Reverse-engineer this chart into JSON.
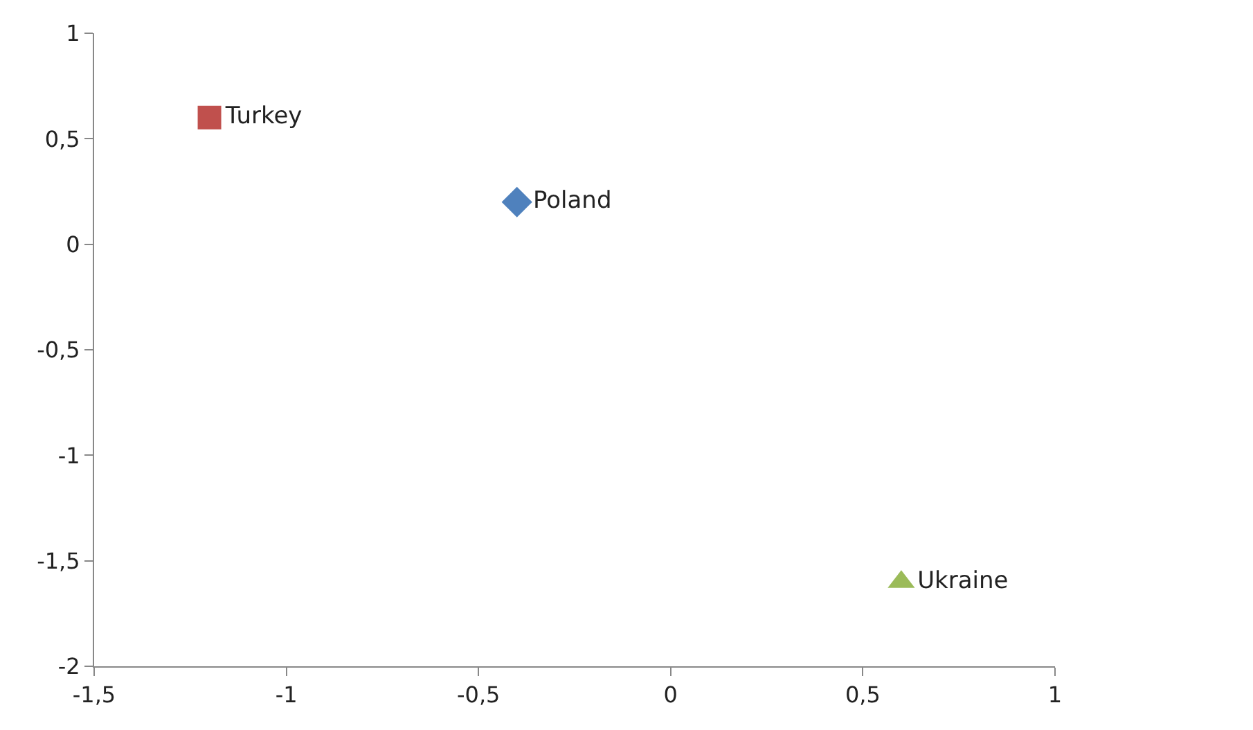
{
  "chart_data": {
    "type": "scatter",
    "series": [
      {
        "name": "Poland",
        "color": "#4f81bd",
        "marker": "diamond",
        "x": [
          -0.4
        ],
        "values": [
          0.2
        ]
      },
      {
        "name": "Turkey",
        "color": "#c0504d",
        "marker": "square",
        "x": [
          -1.2
        ],
        "values": [
          0.6
        ]
      },
      {
        "name": "Ukraine",
        "color": "#9bbb59",
        "marker": "triangle",
        "x": [
          0.6
        ],
        "values": [
          -1.6
        ]
      }
    ],
    "xlim": [
      -1.5,
      1
    ],
    "xticks": [
      {
        "value": -1.5,
        "label": "-1,5"
      },
      -1,
      {
        "value": -0.5,
        "label": "-0,5"
      },
      0,
      {
        "value": 0.5,
        "label": "0,5"
      },
      1
    ],
    "ylim": [
      -2,
      1
    ],
    "yticks": [
      -2,
      {
        "value": -1.5,
        "label": "-1,5"
      },
      -1,
      {
        "value": -0.5,
        "label": "-0,5"
      },
      0,
      {
        "value": 0.5,
        "label": "0,5"
      },
      1
    ],
    "grid": false,
    "legend": false
  }
}
